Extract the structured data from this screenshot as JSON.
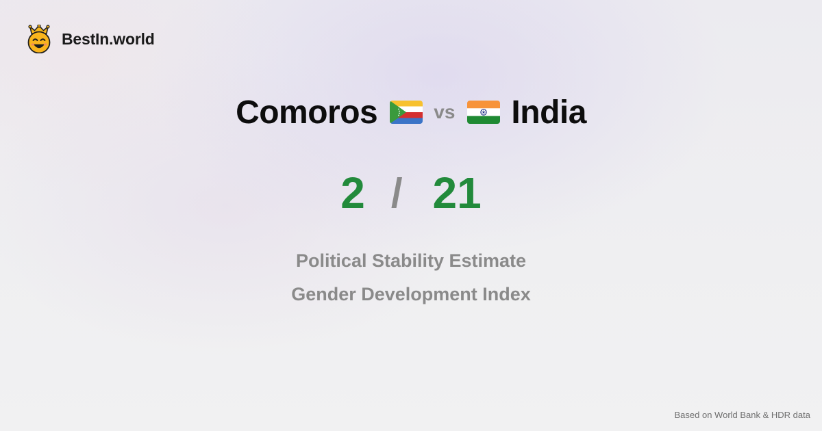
{
  "brand": {
    "name": "BestIn.world",
    "logo_icon": "smiling-face-with-crown-icon"
  },
  "comparison": {
    "left_country": "Comoros",
    "left_flag_icon": "comoros-flag-icon",
    "vs_label": "vs",
    "right_country": "India",
    "right_flag_icon": "india-flag-icon"
  },
  "ranks": {
    "left_value": "2",
    "separator": "/",
    "right_value": "21"
  },
  "metrics": {
    "first": "Political Stability Estimate",
    "second": "Gender Development Index"
  },
  "footer": {
    "source_text": "Based on World Bank & HDR data"
  },
  "colors": {
    "rank_green": "#228a3b",
    "muted_gray": "#8a8a8a",
    "title_text": "#0d0d0d"
  }
}
